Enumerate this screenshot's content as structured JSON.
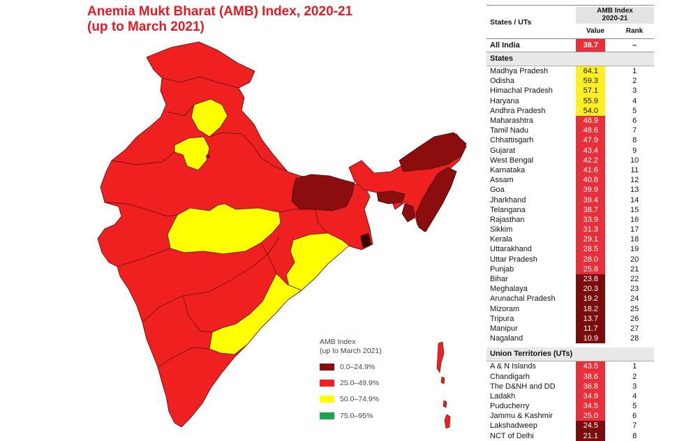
{
  "title": {
    "line1": "Anemia Mukt Bharat (AMB) Index, 2020-21",
    "line2": "(up to March 2021)"
  },
  "colors": {
    "dark": "#8b0d0d",
    "red": "#ee2020",
    "yellow": "#ffff00",
    "green": "#1aa64b",
    "title": "#e31b23",
    "table_red": "#e8303a",
    "table_dark": "#7a0c0c",
    "table_yellow": "#ffee22"
  },
  "legend": {
    "title_line1": "AMB Index",
    "title_line2": "(up to March 2021)",
    "items": [
      {
        "label": "0.0–24.9%",
        "color": "#8b0d0d"
      },
      {
        "label": "25.0–49.9%",
        "color": "#ee2020"
      },
      {
        "label": "50.0–74.9%",
        "color": "#ffff00"
      },
      {
        "label": "75.0–95%",
        "color": "#1aa64b"
      }
    ]
  },
  "table": {
    "header_states": "States / UTs",
    "header_index_line1": "AMB Index",
    "header_index_line2": "2020-21",
    "header_value": "Value",
    "header_rank": "Rank",
    "all_india": {
      "name": "All India",
      "value": "38.7",
      "rank": "–"
    },
    "states_label": "States",
    "states": [
      {
        "name": "Madhya Pradesh",
        "value": "64.1",
        "rank": "1"
      },
      {
        "name": "Odisha",
        "value": "59.3",
        "rank": "2"
      },
      {
        "name": "Himachal Pradesh",
        "value": "57.1",
        "rank": "3"
      },
      {
        "name": "Haryana",
        "value": "55.9",
        "rank": "4"
      },
      {
        "name": "Andhra Pradesh",
        "value": "54.0",
        "rank": "5"
      },
      {
        "name": "Maharashtra",
        "value": "48.9",
        "rank": "6"
      },
      {
        "name": "Tamil Nadu",
        "value": "48.6",
        "rank": "7"
      },
      {
        "name": "Chhattisgarh",
        "value": "47.9",
        "rank": "8"
      },
      {
        "name": "Gujarat",
        "value": "43.4",
        "rank": "9"
      },
      {
        "name": "West Bengal",
        "value": "42.2",
        "rank": "10"
      },
      {
        "name": "Karnataka",
        "value": "41.6",
        "rank": "11"
      },
      {
        "name": "Assam",
        "value": "40.8",
        "rank": "12"
      },
      {
        "name": "Goa",
        "value": "39.9",
        "rank": "13"
      },
      {
        "name": "Jharkhand",
        "value": "39.4",
        "rank": "14"
      },
      {
        "name": "Telangana",
        "value": "38.7",
        "rank": "15"
      },
      {
        "name": "Rajasthan",
        "value": "33.9",
        "rank": "16"
      },
      {
        "name": "Sikkim",
        "value": "31.3",
        "rank": "17"
      },
      {
        "name": "Kerala",
        "value": "29.1",
        "rank": "18"
      },
      {
        "name": "Uttarakhand",
        "value": "28.5",
        "rank": "19"
      },
      {
        "name": "Uttar Pradesh",
        "value": "28.0",
        "rank": "20"
      },
      {
        "name": "Punjab",
        "value": "25.8",
        "rank": "21"
      },
      {
        "name": "Bihar",
        "value": "23.8",
        "rank": "22"
      },
      {
        "name": "Meghalaya",
        "value": "20.3",
        "rank": "23"
      },
      {
        "name": "Arunachal Pradesh",
        "value": "19.2",
        "rank": "24"
      },
      {
        "name": "Mizoram",
        "value": "18.2",
        "rank": "25"
      },
      {
        "name": "Tripura",
        "value": "13.7",
        "rank": "26"
      },
      {
        "name": "Manipur",
        "value": "11.7",
        "rank": "27"
      },
      {
        "name": "Nagaland",
        "value": "10.9",
        "rank": "28"
      }
    ],
    "uts_label": "Union Territories (UTs)",
    "uts": [
      {
        "name": "A & N Islands",
        "value": "43.5",
        "rank": "1"
      },
      {
        "name": "Chandigarh",
        "value": "38.6",
        "rank": "2"
      },
      {
        "name": "The D&NH and DD",
        "value": "36.8",
        "rank": "3"
      },
      {
        "name": "Ladakh",
        "value": "34.9",
        "rank": "4"
      },
      {
        "name": "Puducherry",
        "value": "34.5",
        "rank": "5"
      },
      {
        "name": "Jammu & Kashmir",
        "value": "25.0",
        "rank": "6"
      },
      {
        "name": "Lakshadweep",
        "value": "24.5",
        "rank": "7"
      },
      {
        "name": "NCT of Delhi",
        "value": "21.1",
        "rank": "8"
      }
    ]
  }
}
